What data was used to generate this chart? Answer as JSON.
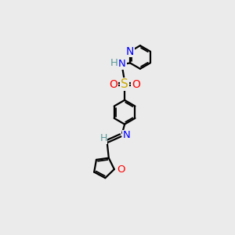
{
  "background_color": "#ebebeb",
  "atom_colors": {
    "C": "#000000",
    "N": "#0000ff",
    "O": "#ff0000",
    "S": "#ccaa00",
    "H": "#5a9a9a"
  },
  "bond_color": "#000000",
  "bond_width": 1.6,
  "figsize": [
    3.0,
    3.0
  ],
  "dpi": 100,
  "xlim": [
    -1.8,
    2.2
  ],
  "ylim": [
    -4.0,
    3.8
  ]
}
